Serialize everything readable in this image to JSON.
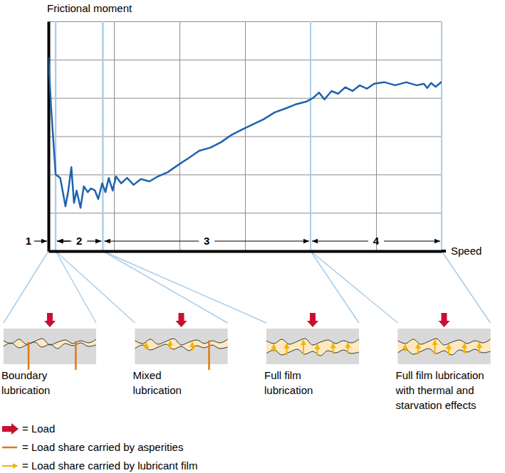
{
  "chart_data": {
    "type": "line",
    "y_label": "Frictional moment",
    "x_label": "Speed",
    "color": "#1f63ad",
    "x": [
      0,
      0.04,
      0.11,
      0.18,
      0.26,
      0.3,
      0.35,
      0.39,
      0.43,
      0.49,
      0.54,
      0.6,
      0.65,
      0.71,
      0.76,
      0.82,
      0.87,
      0.92,
      0.98,
      1.03,
      1.11,
      1.2,
      1.3,
      1.41,
      1.54,
      1.67,
      1.82,
      1.98,
      2.14,
      2.3,
      2.47,
      2.63,
      2.79,
      2.96,
      3.12,
      3.28,
      3.45,
      3.61,
      3.77,
      3.93,
      4.04,
      4.13,
      4.21,
      4.32,
      4.42,
      4.53,
      4.64,
      4.75,
      4.86,
      4.97,
      5.13,
      5.29,
      5.46,
      5.62,
      5.73,
      5.78,
      5.84,
      5.91,
      6.0
    ],
    "values": [
      5.07,
      3.77,
      2.0,
      1.91,
      1.17,
      1.54,
      2.19,
      1.26,
      1.58,
      1.13,
      1.69,
      1.54,
      1.64,
      1.58,
      1.36,
      1.77,
      1.54,
      1.91,
      1.58,
      1.95,
      1.77,
      1.91,
      1.73,
      1.88,
      1.82,
      1.95,
      2.06,
      2.25,
      2.43,
      2.62,
      2.7,
      2.84,
      3.03,
      3.18,
      3.31,
      3.44,
      3.62,
      3.72,
      3.83,
      3.9,
      4.0,
      4.14,
      3.96,
      4.18,
      4.11,
      4.28,
      4.18,
      4.33,
      4.24,
      4.37,
      4.41,
      4.33,
      4.41,
      4.33,
      4.37,
      4.26,
      4.39,
      4.29,
      4.42
    ],
    "xlim": [
      0,
      6
    ],
    "ylim": [
      0,
      6
    ],
    "xticks": [
      0,
      1,
      2,
      3,
      4,
      5,
      6
    ],
    "yticks": [
      0,
      1,
      2,
      3,
      4,
      5,
      6
    ],
    "grid": true,
    "tick_labels": false,
    "zones": [
      {
        "label": "1",
        "start": 0,
        "end": 0.11
      },
      {
        "label": "2",
        "start": 0.11,
        "end": 0.83
      },
      {
        "label": "3",
        "start": 0.83,
        "end": 4.0
      },
      {
        "label": "4",
        "start": 4.0,
        "end": 6.0
      }
    ]
  },
  "diagrams": [
    {
      "label": [
        "Boundary",
        "lubrication"
      ]
    },
    {
      "label": [
        "Mixed",
        "lubrication"
      ]
    },
    {
      "label": [
        "Full film",
        "lubrication"
      ]
    },
    {
      "label": [
        "Full film lubrication",
        "with thermal and",
        "starvation effects"
      ]
    }
  ],
  "key": [
    {
      "text": "= Load",
      "color": "#c8102e"
    },
    {
      "text": "= Load share carried by asperities",
      "color": "#e07a10"
    },
    {
      "text": "= Load share carried by lubricant film",
      "color": "#f5b400"
    }
  ]
}
